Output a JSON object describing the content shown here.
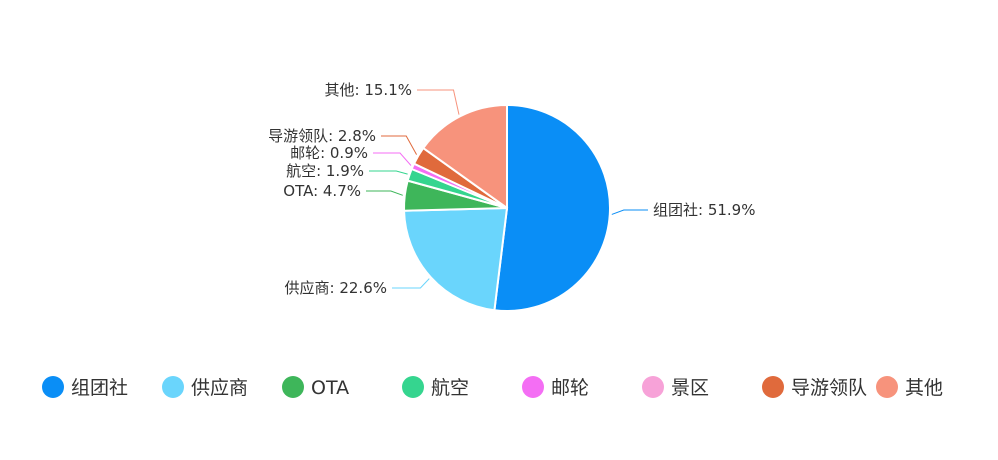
{
  "chart_data": {
    "type": "pie",
    "label_separator": ": ",
    "slices": [
      {
        "name": "组团社",
        "value": 51.9,
        "label": "51.9%",
        "color": "#0a8ef6"
      },
      {
        "name": "供应商",
        "value": 22.6,
        "label": "22.6%",
        "color": "#6ad5fc"
      },
      {
        "name": "OTA",
        "value": 4.7,
        "label": "4.7%",
        "color": "#3eb65a"
      },
      {
        "name": "航空",
        "value": 1.9,
        "label": "1.9%",
        "color": "#35d58f"
      },
      {
        "name": "邮轮",
        "value": 0.9,
        "label": "0.9%",
        "color": "#f46ef4"
      },
      {
        "name": "景区",
        "value": 0.0,
        "label": "",
        "color": "#f7a2d8"
      },
      {
        "name": "导游领队",
        "value": 2.8,
        "label": "2.8%",
        "color": "#e06a3c"
      },
      {
        "name": "其他",
        "value": 15.1,
        "label": "15.1%",
        "color": "#f7937c"
      }
    ],
    "legend": {
      "position": "bottom",
      "items": [
        "组团社",
        "供应商",
        "OTA",
        "航空",
        "邮轮",
        "景区",
        "导游领队",
        "其他"
      ]
    }
  }
}
